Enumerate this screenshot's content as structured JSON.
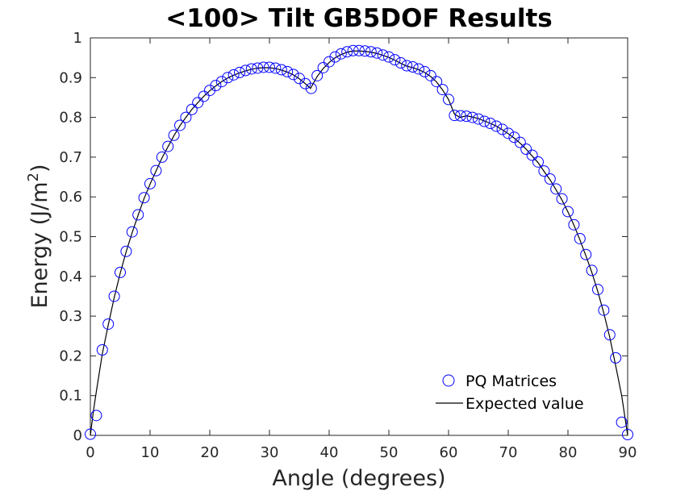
{
  "chart_data": {
    "type": "scatter",
    "title": "<100> Tilt GB5DOF Results",
    "xlabel": "Angle (degrees)",
    "ylabel": "Energy (J/m",
    "ylabel_sup": "2",
    "ylabel_close": ")",
    "xlim": [
      0,
      90
    ],
    "ylim": [
      0,
      1
    ],
    "xticks": [
      0,
      10,
      20,
      30,
      40,
      50,
      60,
      70,
      80,
      90
    ],
    "yticks": [
      0,
      0.1,
      0.2,
      0.3,
      0.4,
      0.5,
      0.6,
      0.7,
      0.8,
      0.9,
      1
    ],
    "grid": false,
    "legend_position": "bottom-right",
    "series": [
      {
        "name": "PQ Matrices",
        "style": "circle-markers",
        "color": "#0000ff",
        "x": [
          0,
          1,
          2,
          3,
          4,
          5,
          6,
          7,
          8,
          9,
          10,
          11,
          12,
          13,
          14,
          15,
          16,
          17,
          18,
          19,
          20,
          21,
          22,
          23,
          24,
          25,
          26,
          27,
          28,
          29,
          30,
          31,
          32,
          33,
          34,
          35,
          36,
          37,
          38,
          39,
          40,
          41,
          42,
          43,
          44,
          45,
          46,
          47,
          48,
          49,
          50,
          51,
          52,
          53,
          54,
          55,
          56,
          57,
          58,
          59,
          60,
          61,
          62,
          63,
          64,
          65,
          66,
          67,
          68,
          69,
          70,
          71,
          72,
          73,
          74,
          75,
          76,
          77,
          78,
          79,
          80,
          81,
          82,
          83,
          84,
          85,
          86,
          87,
          88,
          89,
          90
        ],
        "y": [
          0.003,
          0.05,
          0.215,
          0.28,
          0.35,
          0.41,
          0.463,
          0.512,
          0.555,
          0.598,
          0.633,
          0.666,
          0.7,
          0.727,
          0.755,
          0.78,
          0.8,
          0.82,
          0.837,
          0.853,
          0.868,
          0.88,
          0.89,
          0.9,
          0.907,
          0.913,
          0.918,
          0.922,
          0.924,
          0.926,
          0.926,
          0.924,
          0.92,
          0.915,
          0.908,
          0.898,
          0.885,
          0.873,
          0.905,
          0.925,
          0.94,
          0.952,
          0.96,
          0.965,
          0.968,
          0.968,
          0.967,
          0.965,
          0.962,
          0.957,
          0.952,
          0.945,
          0.937,
          0.93,
          0.927,
          0.922,
          0.915,
          0.905,
          0.89,
          0.87,
          0.845,
          0.805,
          0.804,
          0.803,
          0.8,
          0.796,
          0.79,
          0.785,
          0.778,
          0.77,
          0.76,
          0.75,
          0.737,
          0.72,
          0.705,
          0.688,
          0.665,
          0.645,
          0.62,
          0.595,
          0.563,
          0.53,
          0.495,
          0.455,
          0.415,
          0.367,
          0.315,
          0.253,
          0.195,
          0.033,
          0.002
        ]
      },
      {
        "name": "Expected value",
        "style": "line",
        "color": "#000000",
        "x": [
          0,
          0.5,
          1,
          2,
          3,
          4,
          5,
          6,
          7,
          8,
          9,
          10,
          11,
          12,
          13,
          14,
          15,
          16,
          17,
          18,
          19,
          20,
          21,
          22,
          23,
          24,
          25,
          26,
          27,
          28,
          29,
          30,
          31,
          32,
          33,
          34,
          35,
          36,
          36.87,
          38,
          39,
          40,
          41,
          42,
          43,
          44,
          45,
          46,
          47,
          48,
          49,
          50,
          51,
          52,
          53,
          54,
          55,
          56,
          57,
          58,
          59,
          60,
          61,
          61.9,
          63,
          64,
          65,
          66,
          67,
          68,
          69,
          70,
          71,
          72,
          73,
          74,
          75,
          76,
          77,
          78,
          79,
          80,
          81,
          82,
          83,
          84,
          85,
          86,
          87,
          88,
          89,
          89.5,
          90
        ],
        "y": [
          0,
          0.06,
          0.11,
          0.205,
          0.278,
          0.347,
          0.408,
          0.462,
          0.51,
          0.554,
          0.596,
          0.632,
          0.665,
          0.698,
          0.726,
          0.754,
          0.779,
          0.8,
          0.82,
          0.837,
          0.853,
          0.867,
          0.879,
          0.89,
          0.899,
          0.906,
          0.912,
          0.917,
          0.921,
          0.924,
          0.925,
          0.925,
          0.923,
          0.919,
          0.914,
          0.907,
          0.897,
          0.885,
          0.873,
          0.903,
          0.923,
          0.938,
          0.95,
          0.958,
          0.964,
          0.967,
          0.967,
          0.966,
          0.964,
          0.961,
          0.956,
          0.951,
          0.944,
          0.936,
          0.929,
          0.925,
          0.92,
          0.913,
          0.903,
          0.889,
          0.869,
          0.845,
          0.808,
          0.8,
          0.804,
          0.801,
          0.797,
          0.791,
          0.785,
          0.778,
          0.769,
          0.759,
          0.748,
          0.735,
          0.72,
          0.703,
          0.686,
          0.664,
          0.643,
          0.618,
          0.592,
          0.562,
          0.529,
          0.492,
          0.452,
          0.41,
          0.362,
          0.308,
          0.247,
          0.175,
          0.1,
          0.05,
          0
        ]
      }
    ]
  }
}
